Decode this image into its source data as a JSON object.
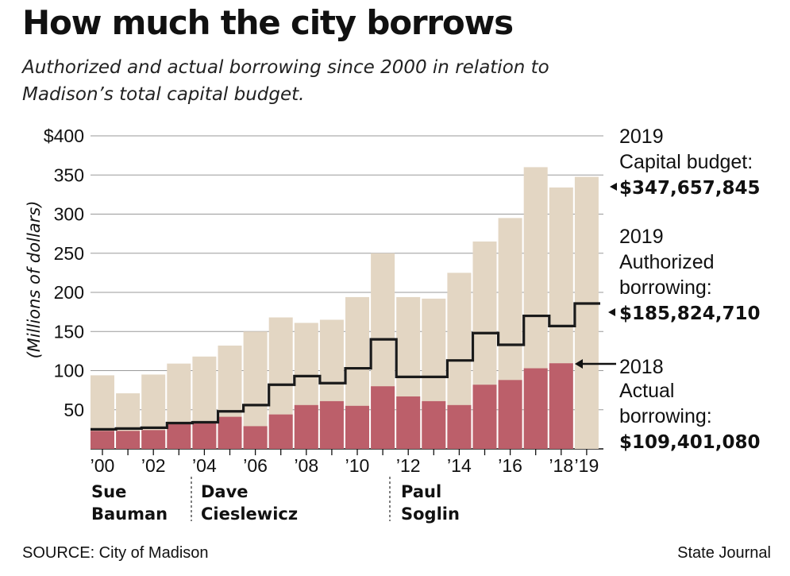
{
  "header": {
    "title": "How much the city borrows",
    "subtitle": "Authorized and actual borrowing since 2000 in relation to Madison’s total capital budget."
  },
  "footer": {
    "source": "SOURCE: City of Madison",
    "credit": "State Journal"
  },
  "colors": {
    "capital_budget": "#e3d6c3",
    "actual_borrowing": "#bc5f6a",
    "authorized_line": "#1a1a1a",
    "grid": "#9a9a9a"
  },
  "chart_data": {
    "type": "bar",
    "title": "How much the city borrows",
    "xlabel": "",
    "ylabel": "(Millions of dollars)",
    "ylim": [
      0,
      400
    ],
    "yticks": [
      50,
      100,
      150,
      200,
      250,
      300,
      350,
      400
    ],
    "ytick_labels": [
      "50",
      "100",
      "150",
      "200",
      "250",
      "300",
      "350",
      "$400"
    ],
    "x": [
      2000,
      2001,
      2002,
      2003,
      2004,
      2005,
      2006,
      2007,
      2008,
      2009,
      2010,
      2011,
      2012,
      2013,
      2014,
      2015,
      2016,
      2017,
      2018,
      2019
    ],
    "xtick_labels": [
      {
        "year": 2000,
        "label": "’00"
      },
      {
        "year": 2002,
        "label": "’02"
      },
      {
        "year": 2004,
        "label": "’04"
      },
      {
        "year": 2006,
        "label": "’06"
      },
      {
        "year": 2008,
        "label": "’08"
      },
      {
        "year": 2010,
        "label": "’10"
      },
      {
        "year": 2012,
        "label": "’12"
      },
      {
        "year": 2014,
        "label": "’14"
      },
      {
        "year": 2016,
        "label": "’16"
      },
      {
        "year": 2018,
        "label": "’18"
      },
      {
        "year": 2019,
        "label": "’19"
      }
    ],
    "series": [
      {
        "name": "Capital budget",
        "kind": "bar",
        "values": [
          94,
          71,
          95,
          109,
          118,
          132,
          150,
          168,
          161,
          165,
          194,
          250,
          194,
          192,
          225,
          265,
          295,
          360,
          334,
          347.66
        ]
      },
      {
        "name": "Actual borrowing",
        "kind": "bar",
        "values": [
          23,
          23,
          24,
          32,
          33,
          41,
          29,
          44,
          56,
          61,
          55,
          80,
          67,
          61,
          56,
          82,
          88,
          103,
          109.4,
          null
        ]
      },
      {
        "name": "Authorized borrowing",
        "kind": "step",
        "values": [
          25,
          26,
          27,
          33,
          34,
          48,
          56,
          82,
          93,
          84,
          103,
          140,
          92,
          92,
          113,
          148,
          133,
          170,
          157,
          185.82
        ]
      }
    ],
    "annotations": {
      "capital": {
        "line1": "2019",
        "line2": "Capital budget:",
        "value": "$347,657,845"
      },
      "authorized": {
        "line1": "2019",
        "line2": "Authorized",
        "line3": "borrowing:",
        "value": "$185,824,710"
      },
      "actual": {
        "line1": "2018",
        "line2": "Actual",
        "line3": "borrowing:",
        "value": "$109,401,080"
      }
    },
    "mayors": [
      {
        "first": "Sue",
        "last": "Bauman",
        "start_year": 2000
      },
      {
        "first": "Dave",
        "last": "Cieslewicz",
        "start_year": 2004
      },
      {
        "first": "Paul",
        "last": "Soglin",
        "start_year": 2012
      }
    ]
  }
}
